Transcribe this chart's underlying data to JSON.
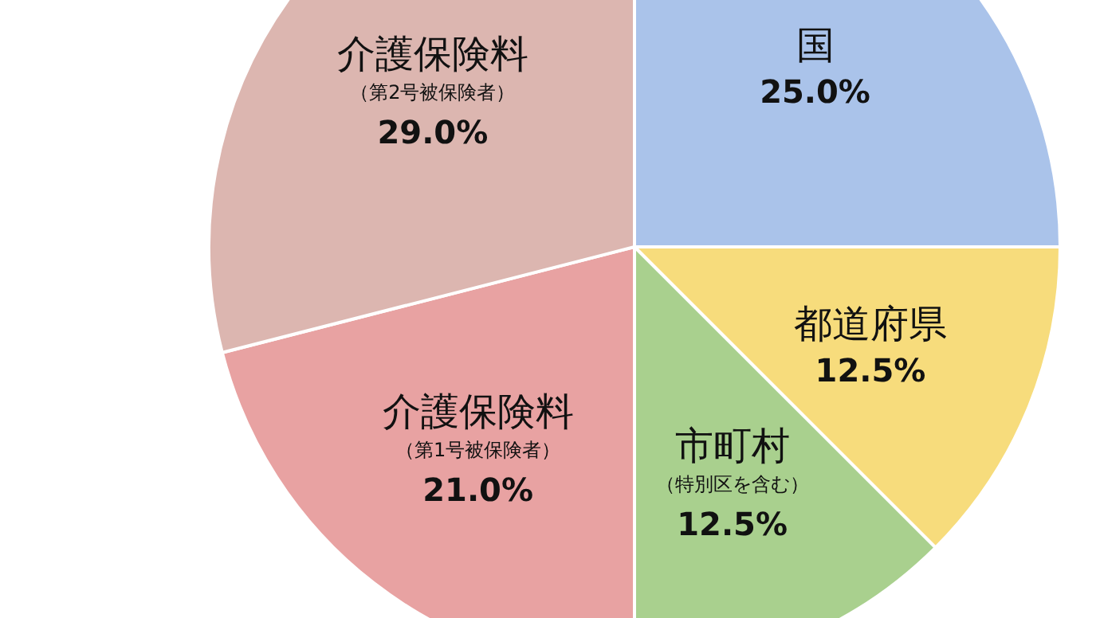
{
  "chart_data": {
    "type": "pie",
    "categories": [
      "国",
      "都道府県",
      "市町村（特別区を含む）",
      "介護保険料（第1号被保険者）",
      "介護保険料（第2号被保険者）"
    ],
    "values": [
      25.0,
      12.5,
      12.5,
      21.0,
      29.0
    ],
    "value_labels": [
      "25.0%",
      "12.5%",
      "12.5%",
      "21.0%",
      "29.0%"
    ],
    "colors": [
      "#aac3ea",
      "#f7dc7c",
      "#a9d08e",
      "#e8a2a2",
      "#dcb6b0"
    ]
  }
}
